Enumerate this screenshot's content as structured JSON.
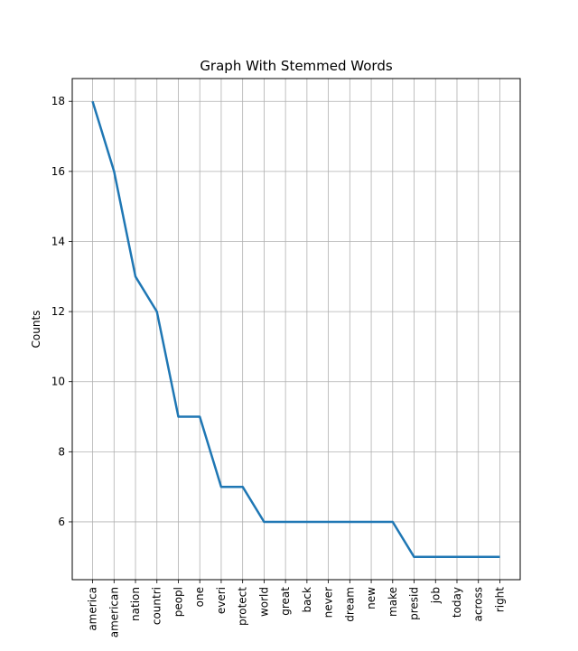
{
  "chart_data": {
    "type": "line",
    "title": "Graph With Stemmed Words",
    "xlabel": "",
    "ylabel": "Counts",
    "categories": [
      "america",
      "american",
      "nation",
      "countri",
      "peopl",
      "one",
      "everi",
      "protect",
      "world",
      "great",
      "back",
      "never",
      "dream",
      "new",
      "make",
      "presid",
      "job",
      "today",
      "across",
      "right"
    ],
    "values": [
      18,
      16,
      13,
      12,
      9,
      9,
      7,
      7,
      6,
      6,
      6,
      6,
      6,
      6,
      6,
      5,
      5,
      5,
      5,
      5
    ],
    "yticks": [
      6,
      8,
      10,
      12,
      14,
      16,
      18
    ],
    "ylim": [
      4.35,
      18.65
    ],
    "grid": true,
    "line_color": "#1f77b4"
  }
}
